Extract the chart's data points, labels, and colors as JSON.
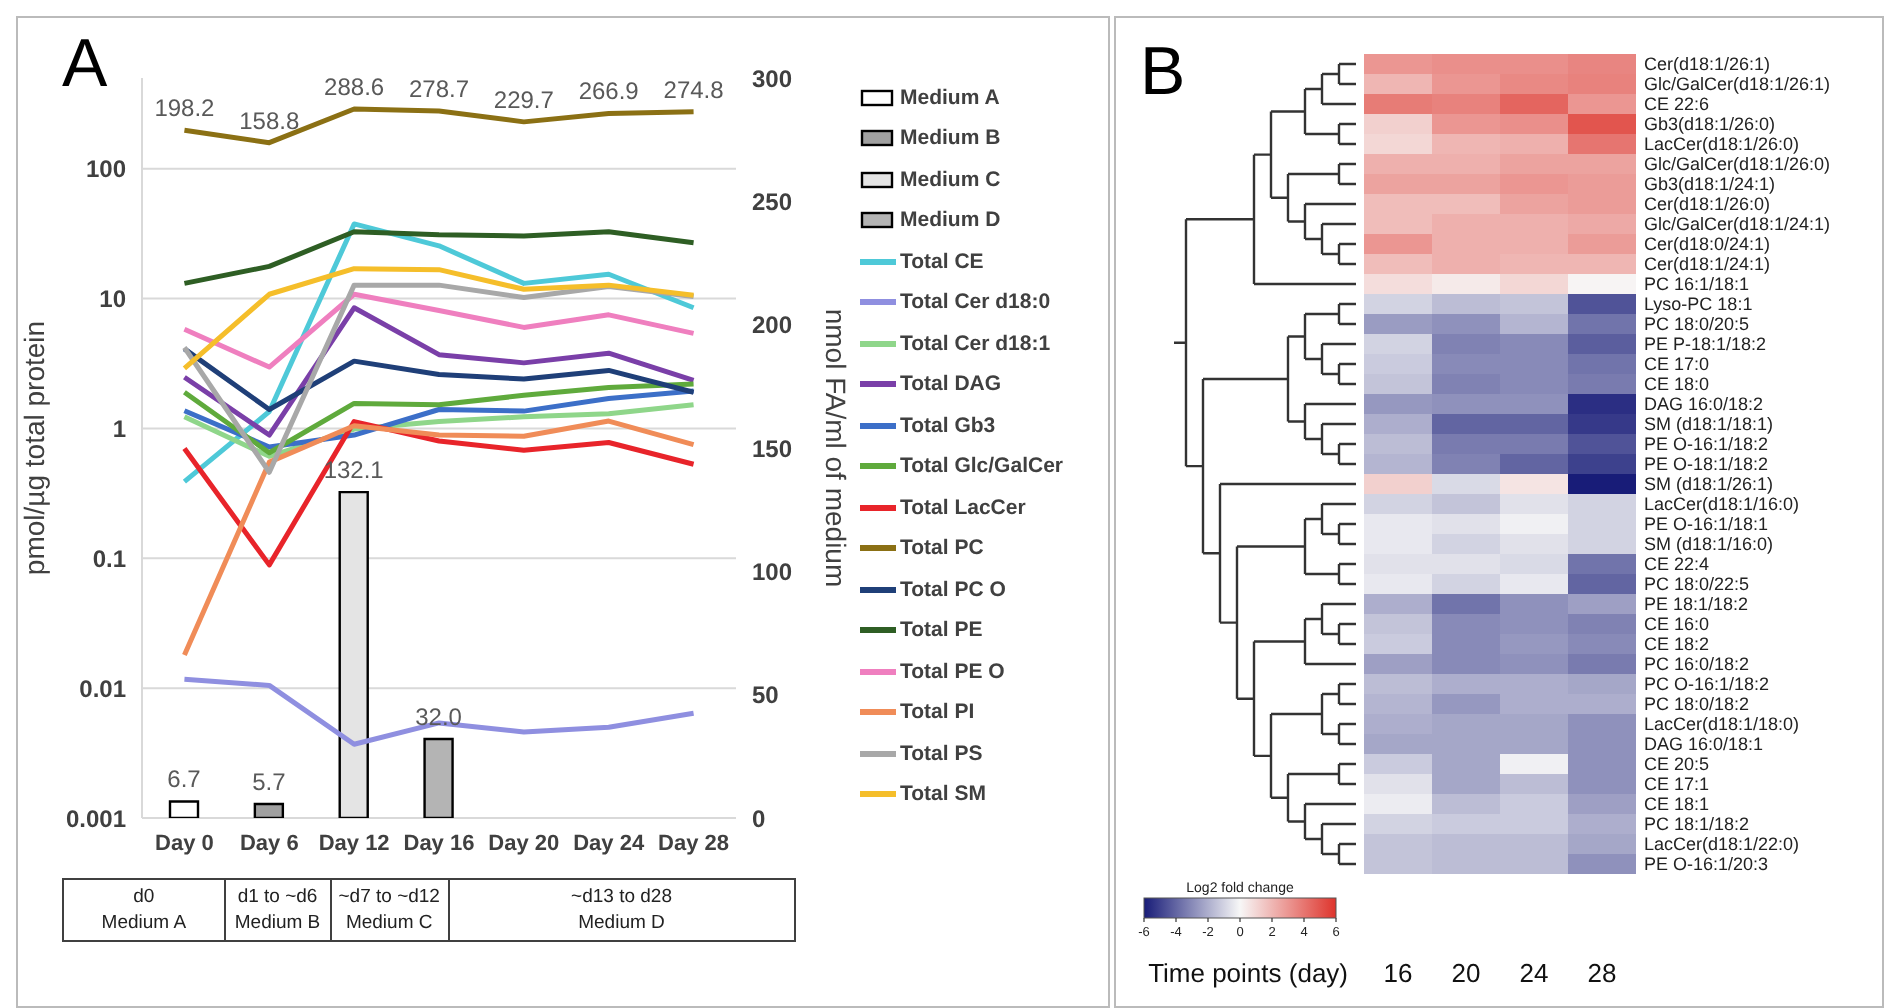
{
  "chart_data": [
    {
      "type": "line",
      "title": "A",
      "categories": [
        "Day 0",
        "Day 6",
        "Day 12",
        "Day 16",
        "Day 20",
        "Day 24",
        "Day 28"
      ],
      "ylabel": "pmol/µg total protein",
      "y2label": "nmol FA/ml of medium",
      "log": "y",
      "grid": "y",
      "legend": "right",
      "stacked": true,
      "ylim": [
        0.001,
        500
      ],
      "yticks": [
        0.001,
        0.01,
        0.1,
        1,
        10,
        100
      ],
      "y2lim": [
        0,
        300
      ],
      "y2ticks": [
        0,
        50,
        100,
        150,
        200,
        250,
        300
      ],
      "series": [
        {
          "name": "Medium A",
          "type": "bar",
          "axis": "y2",
          "color": "#ffffff",
          "values": [
            6.7,
            null,
            null,
            null,
            null,
            null,
            null
          ],
          "value_labels": [
            "6.7",
            null,
            null,
            null,
            null,
            null,
            null
          ]
        },
        {
          "name": "Medium B",
          "type": "bar",
          "axis": "y2",
          "color": "#a0a0a0",
          "values": [
            null,
            5.7,
            null,
            null,
            null,
            null,
            null
          ],
          "value_labels": [
            null,
            "5.7",
            null,
            null,
            null,
            null,
            null
          ]
        },
        {
          "name": "Medium C",
          "type": "bar",
          "axis": "y2",
          "color": "#e4e4e4",
          "values": [
            null,
            null,
            132.1,
            null,
            null,
            null,
            null
          ],
          "value_labels": [
            null,
            null,
            "132.1",
            null,
            null,
            null,
            null
          ]
        },
        {
          "name": "Medium D",
          "type": "bar",
          "axis": "y2",
          "color": "#b4b4b4",
          "values": [
            null,
            null,
            null,
            32.0,
            null,
            null,
            null
          ],
          "value_labels": [
            null,
            null,
            null,
            "32.0",
            null,
            null,
            null
          ]
        },
        {
          "name": "Total CE",
          "color": "#4ec9d8",
          "values": [
            0.39,
            1.35,
            37.6,
            25.5,
            13.1,
            15.4,
            8.5
          ]
        },
        {
          "name": "Total Cer d18:0",
          "color": "#8f8fe0",
          "values": [
            0.0117,
            0.0105,
            0.0037,
            0.0054,
            0.0046,
            0.005,
            0.0064
          ]
        },
        {
          "name": "Total Cer d18:1",
          "color": "#8fd68a",
          "values": [
            1.23,
            0.61,
            0.99,
            1.13,
            1.23,
            1.3,
            1.52
          ]
        },
        {
          "name": "Total DAG",
          "color": "#7a3fa8",
          "values": [
            2.48,
            0.89,
            8.5,
            3.7,
            3.2,
            3.8,
            2.35
          ]
        },
        {
          "name": "Total Gb3",
          "color": "#3c6fc8",
          "values": [
            1.37,
            0.72,
            0.89,
            1.4,
            1.36,
            1.7,
            1.94
          ]
        },
        {
          "name": "Total Glc/GalCer",
          "color": "#5faa3c",
          "values": [
            1.9,
            0.65,
            1.56,
            1.52,
            1.8,
            2.07,
            2.2
          ]
        },
        {
          "name": "Total LacCer",
          "color": "#e8242a",
          "values": [
            0.7,
            0.089,
            1.13,
            0.8,
            0.68,
            0.78,
            0.53
          ]
        },
        {
          "name": "Total PC",
          "color": "#8b7014",
          "values": [
            198.2,
            158.8,
            288.6,
            278.7,
            229.7,
            266.9,
            274.8
          ],
          "value_labels": [
            "198.2",
            "158.8",
            "288.6",
            "278.7",
            "229.7",
            "266.9",
            "274.8"
          ]
        },
        {
          "name": "Total PC O",
          "color": "#1f3f78",
          "values": [
            4.1,
            1.4,
            3.3,
            2.6,
            2.4,
            2.8,
            1.9
          ]
        },
        {
          "name": "Total PE",
          "color": "#2e5e24",
          "values": [
            13.1,
            17.7,
            32.7,
            31,
            30.4,
            32.7,
            26.9
          ]
        },
        {
          "name": "Total PE O",
          "color": "#ef7fbf",
          "values": [
            5.8,
            2.97,
            10.8,
            8.1,
            6.0,
            7.5,
            5.4
          ]
        },
        {
          "name": "Total PI",
          "color": "#f08c58",
          "values": [
            0.018,
            0.55,
            1.05,
            0.89,
            0.87,
            1.14,
            0.75
          ]
        },
        {
          "name": "Total PS",
          "color": "#a8a8a8",
          "values": [
            4.2,
            0.46,
            12.7,
            12.7,
            10.2,
            12.4,
            10.4
          ]
        },
        {
          "name": "Total SM",
          "color": "#f5be2a",
          "values": [
            2.9,
            10.8,
            17,
            16.7,
            11.8,
            12.7,
            10.6
          ]
        }
      ],
      "annotations": [
        "d0\nMedium A",
        "d1 to ~d6\nMedium B",
        "~d7 to ~d12\nMedium C",
        "~d13 to d28\nMedium D"
      ]
    },
    {
      "type": "heatmap",
      "title": "B",
      "xlabel": "Time points (day)",
      "clabel": "Log2 fold change",
      "clim": [
        -6,
        6
      ],
      "cticks": [
        -6,
        -4,
        -2,
        0,
        2,
        4,
        6
      ],
      "categories": [
        "16",
        "20",
        "24",
        "28"
      ],
      "y_categories": [
        "Cer(d18:1/26:1)",
        "Glc/GalCer(d18:1/26:1)",
        "CE 22:6",
        "Gb3(d18:1/26:0)",
        "LacCer(d18:1/26:0)",
        "Glc/GalCer(d18:1/26:0)",
        "Gb3(d18:1/24:1)",
        "Cer(d18:1/26:0)",
        "Glc/GalCer(d18:1/24:1)",
        "Cer(d18:0/24:1)",
        "Cer(d18:1/24:1)",
        "PC 16:1/18:1",
        "Lyso-PC 18:1",
        "PC 18:0/20:5",
        "PE P-18:1/18:2",
        "CE 17:0",
        "CE 18:0",
        "DAG 16:0/18:2",
        "SM (d18:1/18:1)",
        "PE O-16:1/18:2",
        "PE O-18:1/18:2",
        "SM (d18:1/26:1)",
        "LacCer(d18:1/16:0)",
        "PE O-16:1/18:1",
        "SM (d18:1/16:0)",
        "CE 22:4",
        "PC 18:0/22:5",
        "PE 18:1/18:2",
        "CE 16:0",
        "CE 18:2",
        "PC 16:0/18:2",
        "PC O-16:1/18:2",
        "PC 18:0/18:2",
        "LacCer(d18:1/18:0)",
        "DAG 16:0/18:1",
        "CE 20:5",
        "CE 17:1",
        "CE 18:1",
        "PC 18:1/18:2",
        "LacCer(d18:1/22:0)",
        "PE O-16:1/20:3"
      ],
      "cells": [
        [
          3,
          3.2,
          3.2,
          3.5
        ],
        [
          2,
          3,
          3.4,
          3.6
        ],
        [
          3.8,
          3.6,
          4.5,
          3
        ],
        [
          1.2,
          3,
          3.2,
          5
        ],
        [
          1,
          2,
          2.2,
          4
        ],
        [
          2.2,
          2.2,
          2.6,
          2.6
        ],
        [
          2.6,
          2.6,
          3,
          2.8
        ],
        [
          1.8,
          1.8,
          2.6,
          2.8
        ],
        [
          1.8,
          2.2,
          2.2,
          2.4
        ],
        [
          3,
          2.2,
          2.2,
          2.8
        ],
        [
          1.8,
          2.2,
          2,
          2
        ],
        [
          0.8,
          0.4,
          1,
          0.1
        ],
        [
          -1,
          -1.6,
          -1.4,
          -4.5
        ],
        [
          -2.5,
          -2.8,
          -1.8,
          -3.6
        ],
        [
          -1,
          -3.2,
          -3,
          -4.2
        ],
        [
          -1.2,
          -3,
          -3,
          -3.6
        ],
        [
          -1.4,
          -3.2,
          -3,
          -3.4
        ],
        [
          -2.6,
          -2.8,
          -2.8,
          -5.5
        ],
        [
          -2,
          -4,
          -4,
          -5.2
        ],
        [
          -1.6,
          -3.4,
          -3.4,
          -4.5
        ],
        [
          -1.8,
          -3.2,
          -4,
          -5
        ],
        [
          1.2,
          -0.8,
          0.6,
          -6
        ],
        [
          -1,
          -1.4,
          -0.6,
          -1
        ],
        [
          -0.4,
          -0.6,
          -0.2,
          -1
        ],
        [
          -0.4,
          -1,
          -0.6,
          -1
        ],
        [
          -0.6,
          -0.6,
          -0.8,
          -3.6
        ],
        [
          -0.4,
          -1,
          -0.4,
          -4
        ],
        [
          -2,
          -3.6,
          -2.8,
          -2.4
        ],
        [
          -1.4,
          -3,
          -2.8,
          -3.2
        ],
        [
          -1.2,
          -3,
          -2.6,
          -3
        ],
        [
          -2.4,
          -3,
          -2.8,
          -3.4
        ],
        [
          -1.6,
          -2,
          -2,
          -2.2
        ],
        [
          -1.8,
          -2.6,
          -2,
          -2
        ],
        [
          -2,
          -2.2,
          -2.2,
          -2.8
        ],
        [
          -2.2,
          -2.2,
          -2.2,
          -2.8
        ],
        [
          -1.2,
          -2.2,
          -0.2,
          -2.8
        ],
        [
          -0.6,
          -2.2,
          -1.6,
          -2.8
        ],
        [
          -0.3,
          -1.6,
          -1.2,
          -2.4
        ],
        [
          -1,
          -1.2,
          -1.2,
          -2
        ],
        [
          -1.4,
          -1.6,
          -1.6,
          -2.2
        ],
        [
          -1.4,
          -1.6,
          -1.6,
          -2.8
        ]
      ]
    }
  ]
}
